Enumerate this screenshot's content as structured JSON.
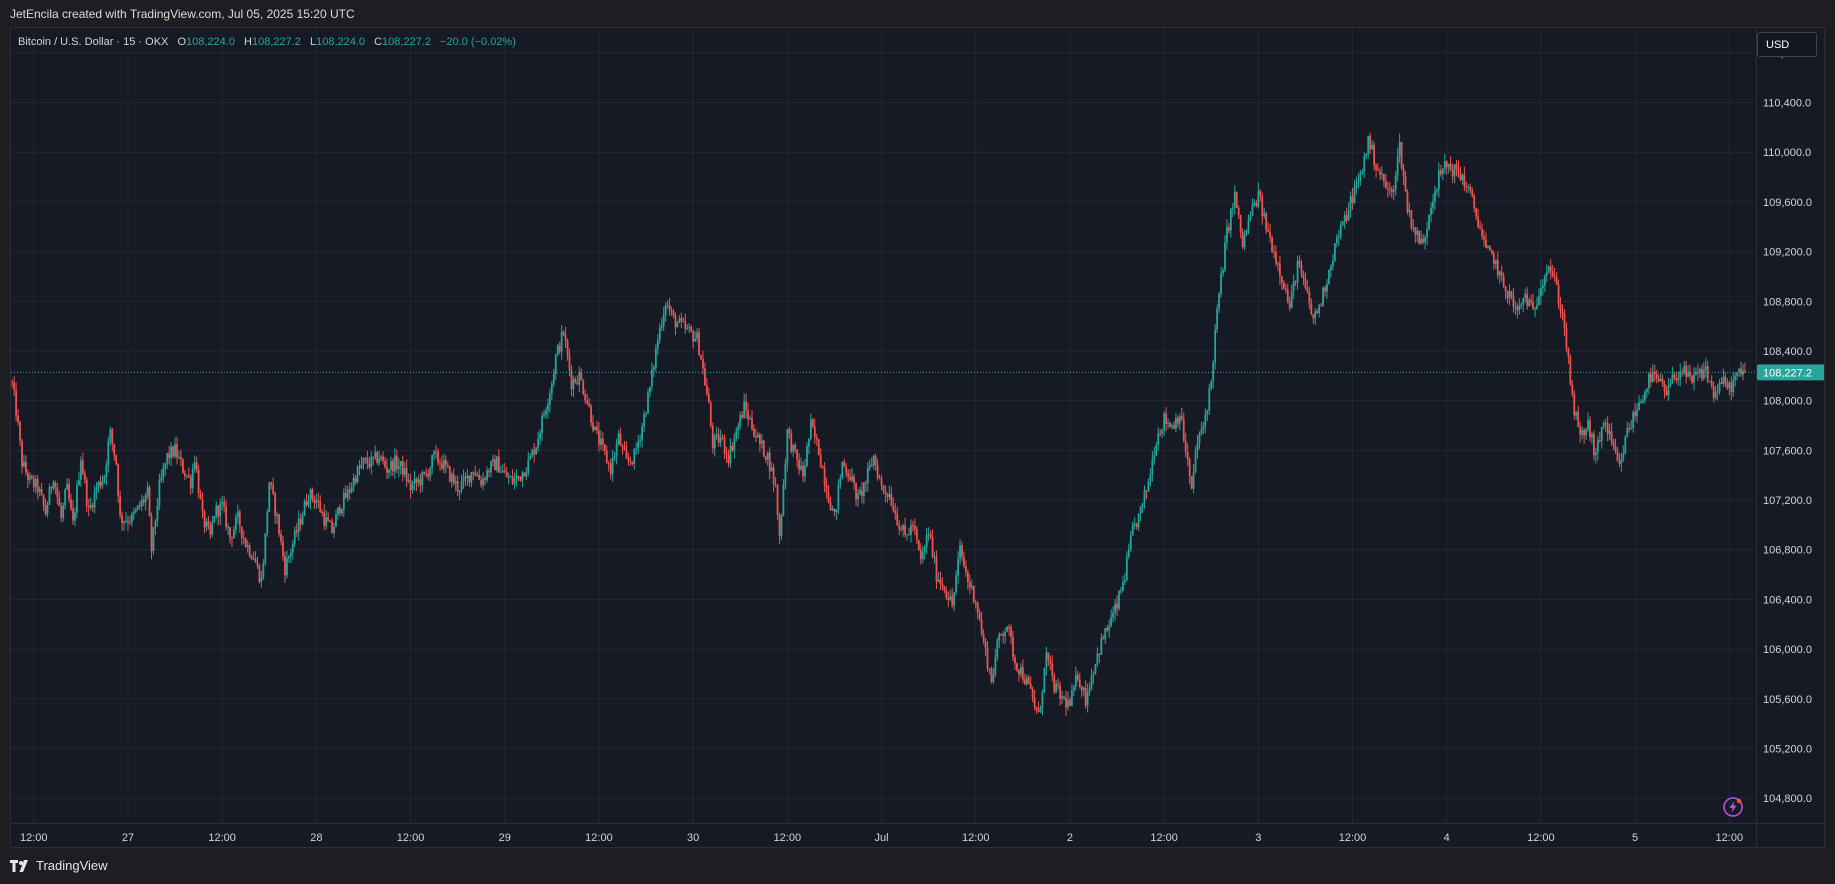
{
  "header": {
    "attribution": "JetEncila created with TradingView.com, Jul 05, 2025 15:20 UTC"
  },
  "legend": {
    "symbol": "Bitcoin / U.S. Dollar · 15 · OKX",
    "open_label": "O",
    "open": "108,224.0",
    "high_label": "H",
    "high": "108,227.2",
    "low_label": "L",
    "low": "108,224.0",
    "close_label": "C",
    "close": "108,227.2",
    "change": "−20.0 (−0.02%)"
  },
  "currency_button": "USD",
  "footer": {
    "brand": "TradingView"
  },
  "colors": {
    "up": "#26a69a",
    "down": "#ef5350",
    "background": "#161a25",
    "grid": "#232734"
  },
  "chart_data": {
    "type": "candlestick",
    "interval": "15",
    "currency": "USD",
    "ylim": [
      104600,
      111000
    ],
    "y_ticks": [
      "110,800.0",
      "110,400.0",
      "110,000.0",
      "109,600.0",
      "109,200.0",
      "108,800.0",
      "108,400.0",
      "108,000.0",
      "107,600.0",
      "107,200.0",
      "106,800.0",
      "106,400.0",
      "106,000.0",
      "105,600.0",
      "105,200.0",
      "104,800.0"
    ],
    "y_tick_values": [
      110800,
      110400,
      110000,
      109600,
      109200,
      108800,
      108400,
      108000,
      107600,
      107200,
      106800,
      106400,
      106000,
      105600,
      105200,
      104800
    ],
    "x_ticks": [
      "12:00",
      "27",
      "12:00",
      "28",
      "12:00",
      "29",
      "12:00",
      "30",
      "12:00",
      "Jul",
      "12:00",
      "2",
      "12:00",
      "3",
      "12:00",
      "4",
      "12:00",
      "5",
      "12:00"
    ],
    "x_tick_hours": [
      12,
      24,
      36,
      48,
      60,
      72,
      84,
      96,
      108,
      120,
      132,
      144,
      156,
      168,
      180,
      192,
      204,
      216,
      228
    ],
    "x_range_hours": [
      9.1,
      231.4
    ],
    "last_price": 108227.2,
    "last_price_label": "108,227.2",
    "close_path": [
      [
        9.2,
        108150
      ],
      [
        9.8,
        107900
      ],
      [
        10.5,
        107500
      ],
      [
        11.5,
        107350
      ],
      [
        12.5,
        107300
      ],
      [
        13.5,
        107100
      ],
      [
        14.5,
        107400
      ],
      [
        15.5,
        107050
      ],
      [
        16.2,
        107300
      ],
      [
        17,
        107000
      ],
      [
        18,
        107550
      ],
      [
        19,
        107100
      ],
      [
        20,
        107300
      ],
      [
        21,
        107400
      ],
      [
        21.7,
        107750
      ],
      [
        22.5,
        107500
      ],
      [
        23,
        107050
      ],
      [
        24.5,
        107050
      ],
      [
        25.5,
        107150
      ],
      [
        26.5,
        107250
      ],
      [
        27,
        106800
      ],
      [
        28,
        107300
      ],
      [
        29,
        107550
      ],
      [
        30,
        107600
      ],
      [
        31,
        107450
      ],
      [
        32,
        107350
      ],
      [
        32.5,
        107550
      ],
      [
        33.5,
        107050
      ],
      [
        34.5,
        106900
      ],
      [
        35,
        107100
      ],
      [
        36,
        107150
      ],
      [
        37,
        106900
      ],
      [
        38,
        107050
      ],
      [
        39,
        106850
      ],
      [
        40,
        106750
      ],
      [
        41,
        106550
      ],
      [
        41.5,
        106900
      ],
      [
        42,
        107350
      ],
      [
        43,
        107050
      ],
      [
        44,
        106650
      ],
      [
        45,
        106850
      ],
      [
        46,
        107050
      ],
      [
        47,
        107250
      ],
      [
        48,
        107200
      ],
      [
        49,
        107050
      ],
      [
        50,
        106950
      ],
      [
        51,
        107150
      ],
      [
        52,
        107250
      ],
      [
        53,
        107400
      ],
      [
        54,
        107500
      ],
      [
        55,
        107500
      ],
      [
        56,
        107550
      ],
      [
        57,
        107450
      ],
      [
        58,
        107500
      ],
      [
        59,
        107450
      ],
      [
        60,
        107300
      ],
      [
        61,
        107350
      ],
      [
        62,
        107400
      ],
      [
        63,
        107550
      ],
      [
        64,
        107500
      ],
      [
        65,
        107400
      ],
      [
        66,
        107300
      ],
      [
        67,
        107350
      ],
      [
        68,
        107450
      ],
      [
        69,
        107350
      ],
      [
        70,
        107450
      ],
      [
        71,
        107500
      ],
      [
        72,
        107400
      ],
      [
        73,
        107350
      ],
      [
        74,
        107400
      ],
      [
        75,
        107500
      ],
      [
        76,
        107650
      ],
      [
        77,
        107900
      ],
      [
        78,
        108150
      ],
      [
        78.5,
        108350
      ],
      [
        79.5,
        108550
      ],
      [
        80.5,
        108150
      ],
      [
        81.5,
        108200
      ],
      [
        82.5,
        108000
      ],
      [
        83.5,
        107750
      ],
      [
        84.5,
        107600
      ],
      [
        85.5,
        107450
      ],
      [
        86.5,
        107700
      ],
      [
        87.5,
        107500
      ],
      [
        88.5,
        107550
      ],
      [
        89.5,
        107800
      ],
      [
        90.5,
        108100
      ],
      [
        91.5,
        108500
      ],
      [
        92.5,
        108800
      ],
      [
        93.5,
        108650
      ],
      [
        94.5,
        108600
      ],
      [
        95.5,
        108550
      ],
      [
        96.5,
        108500
      ],
      [
        97,
        108350
      ],
      [
        98,
        107950
      ],
      [
        98.5,
        107650
      ],
      [
        99.5,
        107700
      ],
      [
        100.5,
        107550
      ],
      [
        101.5,
        107750
      ],
      [
        102.5,
        107950
      ],
      [
        103.5,
        107800
      ],
      [
        104.5,
        107650
      ],
      [
        105.5,
        107550
      ],
      [
        106.5,
        107300
      ],
      [
        107,
        106900
      ],
      [
        108,
        107750
      ],
      [
        109,
        107550
      ],
      [
        110,
        107400
      ],
      [
        111,
        107800
      ],
      [
        112,
        107600
      ],
      [
        113,
        107300
      ],
      [
        114,
        107050
      ],
      [
        115,
        107500
      ],
      [
        116,
        107400
      ],
      [
        117,
        107200
      ],
      [
        118,
        107350
      ],
      [
        119,
        107550
      ],
      [
        120,
        107300
      ],
      [
        121,
        107250
      ],
      [
        122,
        107050
      ],
      [
        123,
        106900
      ],
      [
        124,
        107000
      ],
      [
        125,
        106700
      ],
      [
        126,
        106950
      ],
      [
        127,
        106600
      ],
      [
        128,
        106500
      ],
      [
        129,
        106350
      ],
      [
        130,
        106800
      ],
      [
        131,
        106550
      ],
      [
        132,
        106400
      ],
      [
        133,
        106050
      ],
      [
        134,
        105750
      ],
      [
        135,
        106100
      ],
      [
        136,
        106200
      ],
      [
        137,
        105900
      ],
      [
        138,
        105800
      ],
      [
        139,
        105650
      ],
      [
        140,
        105450
      ],
      [
        141,
        105950
      ],
      [
        142,
        105700
      ],
      [
        143,
        105600
      ],
      [
        144,
        105550
      ],
      [
        145,
        105800
      ],
      [
        146,
        105600
      ],
      [
        147,
        105850
      ],
      [
        148,
        106050
      ],
      [
        149,
        106200
      ],
      [
        150,
        106350
      ],
      [
        151,
        106600
      ],
      [
        152,
        106950
      ],
      [
        153,
        107100
      ],
      [
        154,
        107350
      ],
      [
        155,
        107700
      ],
      [
        156,
        107850
      ],
      [
        157,
        107800
      ],
      [
        158,
        107900
      ],
      [
        159,
        107500
      ],
      [
        159.5,
        107250
      ],
      [
        160,
        107600
      ],
      [
        161,
        107800
      ],
      [
        162,
        108150
      ],
      [
        162.5,
        108550
      ],
      [
        163,
        108850
      ],
      [
        164,
        109350
      ],
      [
        165,
        109650
      ],
      [
        166,
        109250
      ],
      [
        167,
        109500
      ],
      [
        168,
        109650
      ],
      [
        169,
        109400
      ],
      [
        170,
        109200
      ],
      [
        171,
        109000
      ],
      [
        172,
        108750
      ],
      [
        173,
        109100
      ],
      [
        174,
        108900
      ],
      [
        175,
        108650
      ],
      [
        176,
        108800
      ],
      [
        177,
        109050
      ],
      [
        178,
        109300
      ],
      [
        179,
        109450
      ],
      [
        180,
        109650
      ],
      [
        181,
        109800
      ],
      [
        182,
        110100
      ],
      [
        183,
        109900
      ],
      [
        184,
        109750
      ],
      [
        185,
        109650
      ],
      [
        186,
        110050
      ],
      [
        187,
        109550
      ],
      [
        188,
        109350
      ],
      [
        189,
        109250
      ],
      [
        190,
        109600
      ],
      [
        191,
        109800
      ],
      [
        192,
        109900
      ],
      [
        193,
        109850
      ],
      [
        194,
        109800
      ],
      [
        195,
        109650
      ],
      [
        196,
        109450
      ],
      [
        197,
        109200
      ],
      [
        198,
        109150
      ],
      [
        199,
        108950
      ],
      [
        200,
        108850
      ],
      [
        201,
        108700
      ],
      [
        202,
        108850
      ],
      [
        203,
        108700
      ],
      [
        204,
        108950
      ],
      [
        205,
        109100
      ],
      [
        206,
        108900
      ],
      [
        207,
        108600
      ],
      [
        208,
        108000
      ],
      [
        209,
        107700
      ],
      [
        210,
        107800
      ],
      [
        211,
        107550
      ],
      [
        212,
        107850
      ],
      [
        213,
        107650
      ],
      [
        214,
        107450
      ],
      [
        215,
        107750
      ],
      [
        216,
        107900
      ],
      [
        217,
        108050
      ],
      [
        218,
        108200
      ],
      [
        219,
        108150
      ],
      [
        220,
        108050
      ],
      [
        221,
        108200
      ],
      [
        222,
        108250
      ],
      [
        223,
        108150
      ],
      [
        224,
        108200
      ],
      [
        225,
        108250
      ],
      [
        226,
        108050
      ],
      [
        227,
        108150
      ],
      [
        228,
        108100
      ],
      [
        229,
        108200
      ],
      [
        230,
        108227.2
      ]
    ]
  }
}
